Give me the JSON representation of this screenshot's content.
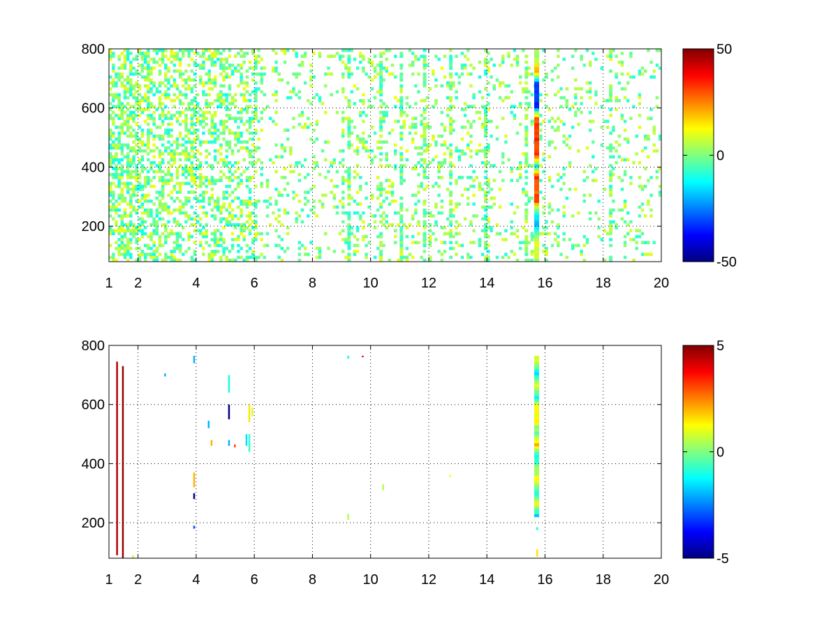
{
  "chart_data": [
    {
      "type": "heatmap",
      "title": "",
      "xlabel": "",
      "ylabel": "",
      "xlim": [
        1,
        20
      ],
      "ylim": [
        80,
        800
      ],
      "x_ticks": [
        1,
        2,
        4,
        6,
        8,
        10,
        12,
        14,
        16,
        18,
        20
      ],
      "x_tick_labels": [
        "1",
        "2",
        "4",
        "6",
        "8",
        "10",
        "12",
        "14",
        "16",
        "18",
        "20"
      ],
      "y_ticks": [
        200,
        400,
        600,
        800
      ],
      "y_tick_labels": [
        "200",
        "400",
        "600",
        "800"
      ],
      "grid": true,
      "colormap": "jet",
      "clim": [
        -50,
        50
      ],
      "colorbar_ticks": [
        -50,
        0,
        50
      ],
      "colorbar_tick_labels": [
        "-50",
        "0",
        "50"
      ],
      "background": "#ffffff",
      "strong_bands": [
        {
          "x": 15.7,
          "y_range": [
            80,
            800
          ],
          "values": [
            [
              80,
              5
            ],
            [
              120,
              8
            ],
            [
              160,
              3
            ],
            [
              200,
              -22
            ],
            [
              240,
              -12
            ],
            [
              280,
              30
            ],
            [
              320,
              28
            ],
            [
              360,
              33
            ],
            [
              400,
              -12
            ],
            [
              440,
              32
            ],
            [
              480,
              34
            ],
            [
              520,
              31
            ],
            [
              560,
              29
            ],
            [
              600,
              -32
            ],
            [
              640,
              -34
            ],
            [
              680,
              -30
            ],
            [
              720,
              24
            ],
            [
              760,
              4
            ],
            [
              800,
              4
            ]
          ]
        }
      ],
      "scatter_density": [
        {
          "x_range": [
            1,
            2
          ],
          "density": 0.55,
          "value_range": [
            -12,
            12
          ]
        },
        {
          "x_range": [
            2,
            4
          ],
          "density": 0.45,
          "value_range": [
            -12,
            12
          ]
        },
        {
          "x_range": [
            4,
            6
          ],
          "density": 0.38,
          "value_range": [
            -12,
            12
          ]
        },
        {
          "x_range": [
            6,
            9
          ],
          "density": 0.14,
          "value_range": [
            -10,
            10
          ]
        },
        {
          "x_range": [
            9,
            14
          ],
          "density": 0.17,
          "value_range": [
            -10,
            12
          ]
        },
        {
          "x_range": [
            14,
            20
          ],
          "density": 0.12,
          "value_range": [
            -10,
            10
          ]
        }
      ],
      "streak_columns": [
        9.2,
        10.3,
        11.0,
        11.8,
        12.7,
        13.9,
        15.3,
        18.2
      ]
    },
    {
      "type": "heatmap",
      "title": "",
      "xlabel": "",
      "ylabel": "",
      "xlim": [
        1,
        20
      ],
      "ylim": [
        80,
        800
      ],
      "x_ticks": [
        1,
        2,
        4,
        6,
        8,
        10,
        12,
        14,
        16,
        18,
        20
      ],
      "x_tick_labels": [
        "1",
        "2",
        "4",
        "6",
        "8",
        "10",
        "12",
        "14",
        "16",
        "18",
        "20"
      ],
      "y_ticks": [
        200,
        400,
        600,
        800
      ],
      "y_tick_labels": [
        "200",
        "400",
        "600",
        "800"
      ],
      "grid": true,
      "colormap": "jet",
      "clim": [
        -5,
        5
      ],
      "colorbar_ticks": [
        -5,
        0,
        5
      ],
      "colorbar_tick_labels": [
        "-5",
        "0",
        "5"
      ],
      "background": "#ffffff",
      "strong_bands": [
        {
          "x": 15.7,
          "y_range": [
            220,
            765
          ],
          "values": [
            [
              220,
              -1.5
            ],
            [
              260,
              1
            ],
            [
              300,
              -1
            ],
            [
              340,
              1.5
            ],
            [
              380,
              0
            ],
            [
              420,
              -1.2
            ],
            [
              460,
              1.8
            ],
            [
              500,
              -0.5
            ],
            [
              540,
              1.2
            ],
            [
              580,
              1.5
            ],
            [
              620,
              -1
            ],
            [
              660,
              0.8
            ],
            [
              700,
              -1.5
            ],
            [
              740,
              1
            ],
            [
              765,
              0.5
            ]
          ]
        }
      ],
      "cells": [
        {
          "x": 1.25,
          "y0": 90,
          "y1": 745,
          "value": 4.5
        },
        {
          "x": 1.45,
          "y0": 80,
          "y1": 730,
          "value": 4.8
        },
        {
          "x": 3.9,
          "y0": 280,
          "y1": 300,
          "value": -5
        },
        {
          "x": 3.9,
          "y0": 320,
          "y1": 370,
          "value": 2
        },
        {
          "x": 3.9,
          "y0": 740,
          "y1": 765,
          "value": -2
        },
        {
          "x": 3.9,
          "y0": 180,
          "y1": 190,
          "value": -3
        },
        {
          "x": 5.1,
          "y0": 550,
          "y1": 600,
          "value": -5
        },
        {
          "x": 5.1,
          "y0": 460,
          "y1": 480,
          "value": -2
        },
        {
          "x": 5.1,
          "y0": 640,
          "y1": 700,
          "value": -1
        },
        {
          "x": 5.3,
          "y0": 455,
          "y1": 465,
          "value": 3
        },
        {
          "x": 5.7,
          "y0": 460,
          "y1": 500,
          "value": -1.5
        },
        {
          "x": 5.8,
          "y0": 440,
          "y1": 500,
          "value": -0.8
        },
        {
          "x": 5.8,
          "y0": 540,
          "y1": 600,
          "value": 1.5
        },
        {
          "x": 5.9,
          "y0": 560,
          "y1": 590,
          "value": 0.8
        },
        {
          "x": 4.5,
          "y0": 460,
          "y1": 480,
          "value": 2
        },
        {
          "x": 4.4,
          "y0": 520,
          "y1": 545,
          "value": -2
        },
        {
          "x": 2.9,
          "y0": 695,
          "y1": 705,
          "value": -2
        },
        {
          "x": 9.2,
          "y0": 210,
          "y1": 230,
          "value": 0.5
        },
        {
          "x": 9.2,
          "y0": 755,
          "y1": 765,
          "value": -1
        },
        {
          "x": 9.7,
          "y0": 760,
          "y1": 765,
          "value": 4
        },
        {
          "x": 10.4,
          "y0": 310,
          "y1": 330,
          "value": 0.5
        },
        {
          "x": 12.7,
          "y0": 355,
          "y1": 362,
          "value": 1
        },
        {
          "x": 15.7,
          "y0": 85,
          "y1": 110,
          "value": 1.5
        },
        {
          "x": 15.7,
          "y0": 175,
          "y1": 185,
          "value": -1
        },
        {
          "x": 1.8,
          "y0": 80,
          "y1": 90,
          "value": 0.5
        }
      ]
    }
  ]
}
